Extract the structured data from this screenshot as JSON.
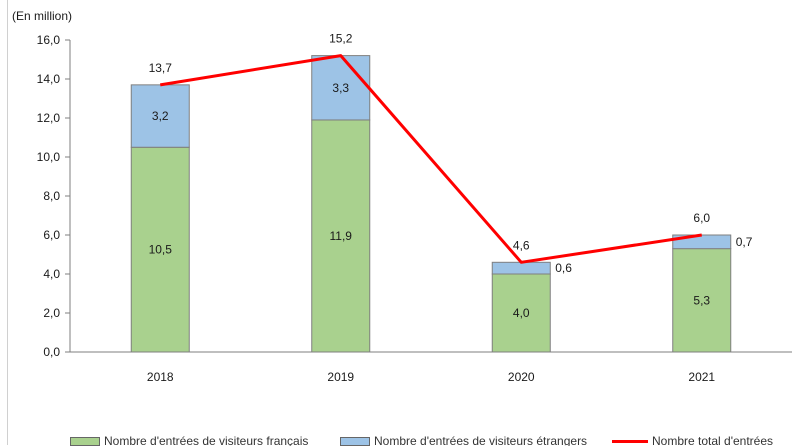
{
  "unit_label": "(En million)",
  "colors": {
    "french": "#a9d18e",
    "foreign": "#9dc3e6",
    "total": "#ff0000",
    "bar_border": "#7f7f7f",
    "axis": "#7f7f7f"
  },
  "chart_data": {
    "type": "bar",
    "stacked": true,
    "categories": [
      "2018",
      "2019",
      "2020",
      "2021"
    ],
    "series": [
      {
        "name": "Nombre d'entrées de visiteurs français",
        "values": [
          10.5,
          11.9,
          4.0,
          5.3
        ],
        "labels": [
          "10,5",
          "11,9",
          "4,0",
          "5,3"
        ]
      },
      {
        "name": "Nombre d'entrées de visiteurs étrangers",
        "values": [
          3.2,
          3.3,
          0.6,
          0.7
        ],
        "labels": [
          "3,2",
          "3,3",
          "0,6",
          "0,7"
        ]
      }
    ],
    "line_series": {
      "name": "Nombre total d'entrées",
      "values": [
        13.7,
        15.2,
        4.6,
        6.0
      ],
      "labels": [
        "13,7",
        "15,2",
        "4,6",
        "6,0"
      ]
    },
    "y_ticks": [
      "0,0",
      "2,0",
      "4,0",
      "6,0",
      "8,0",
      "10,0",
      "12,0",
      "14,0",
      "16,0"
    ],
    "ylim": [
      0,
      16
    ],
    "grid": false,
    "legend": "bottom"
  }
}
